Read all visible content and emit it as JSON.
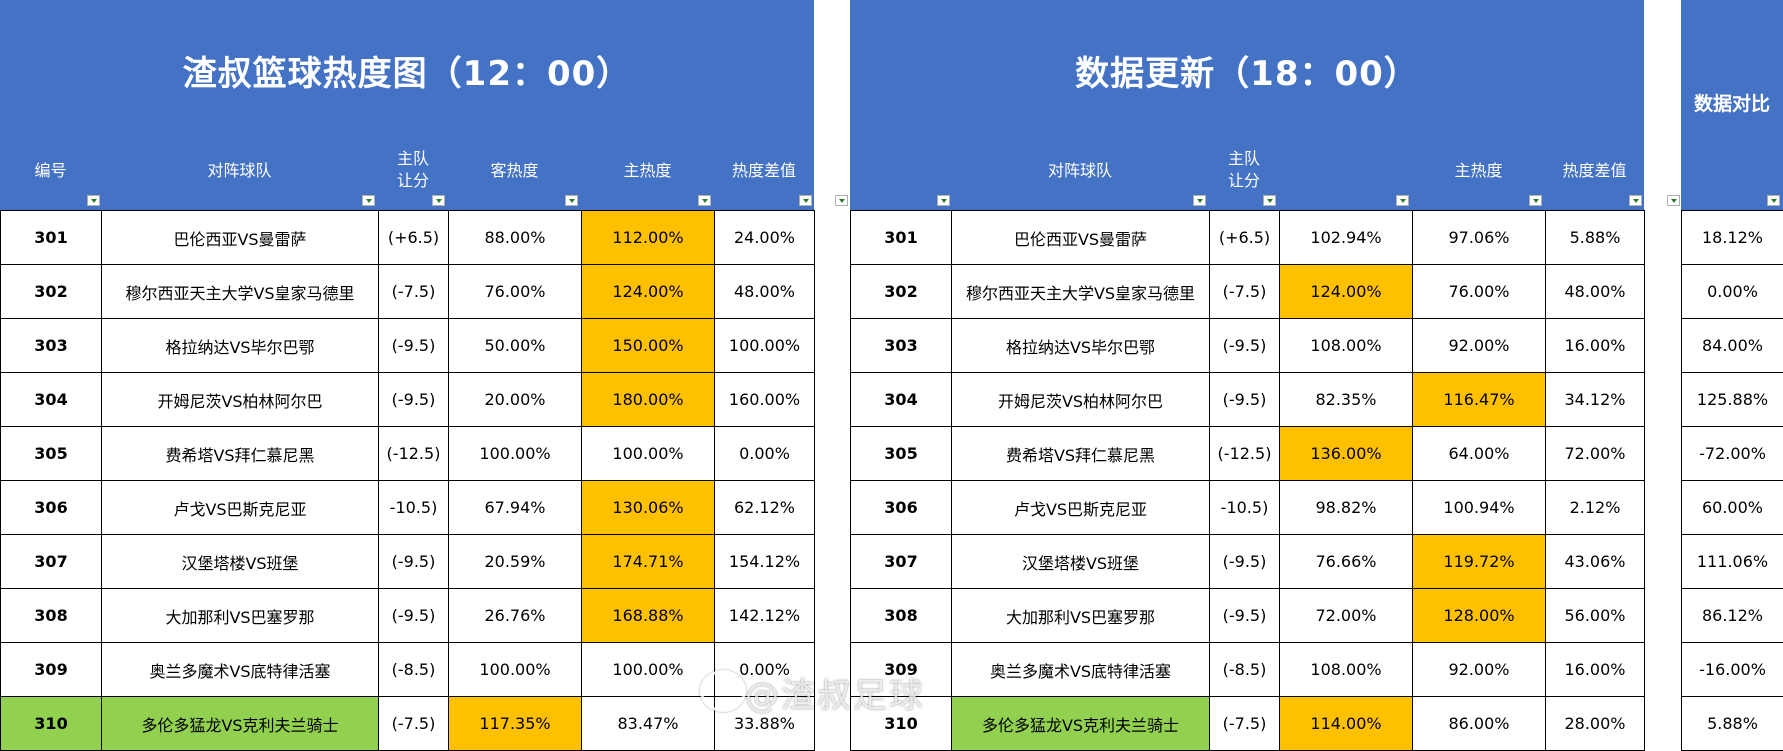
{
  "left": {
    "title": "渣叔篮球热度图（12：00）",
    "headers": [
      "编号",
      "对阵球队",
      "主队\n让分",
      "客热度",
      "主热度",
      "热度差值"
    ],
    "rows": [
      {
        "id": "301",
        "teams": "巴伦西亚VS曼雷萨",
        "spread": "(+6.5)",
        "away": "88.00%",
        "home": "112.00%",
        "diff": "24.00%"
      },
      {
        "id": "302",
        "teams": "穆尔西亚天主大学VS皇家马德里",
        "spread": "(-7.5)",
        "away": "76.00%",
        "home": "124.00%",
        "diff": "48.00%"
      },
      {
        "id": "303",
        "teams": "格拉纳达VS毕尔巴鄂",
        "spread": "(-9.5)",
        "away": "50.00%",
        "home": "150.00%",
        "diff": "100.00%"
      },
      {
        "id": "304",
        "teams": "开姆尼茨VS柏林阿尔巴",
        "spread": "(-9.5)",
        "away": "20.00%",
        "home": "180.00%",
        "diff": "160.00%"
      },
      {
        "id": "305",
        "teams": "费希塔VS拜仁慕尼黑",
        "spread": "(-12.5)",
        "away": "100.00%",
        "home": "100.00%",
        "diff": "0.00%"
      },
      {
        "id": "306",
        "teams": "卢戈VS巴斯克尼亚",
        "spread": "-10.5)",
        "away": "67.94%",
        "home": "130.06%",
        "diff": "62.12%"
      },
      {
        "id": "307",
        "teams": "汉堡塔楼VS班堡",
        "spread": "(-9.5)",
        "away": "20.59%",
        "home": "174.71%",
        "diff": "154.12%"
      },
      {
        "id": "308",
        "teams": "大加那利VS巴塞罗那",
        "spread": "(-9.5)",
        "away": "26.76%",
        "home": "168.88%",
        "diff": "142.12%"
      },
      {
        "id": "309",
        "teams": "奥兰多魔术VS底特律活塞",
        "spread": "(-8.5)",
        "away": "100.00%",
        "home": "100.00%",
        "diff": "0.00%"
      },
      {
        "id": "310",
        "teams": "多伦多猛龙VS克利夫兰骑士",
        "spread": "(-7.5)",
        "away": "117.35%",
        "home": "83.47%",
        "diff": "33.88%"
      }
    ]
  },
  "right": {
    "title": "数据更新（18：00）",
    "headers": [
      "对阵球队",
      "主队\n让分",
      "主热度",
      "热度差值"
    ],
    "rows": [
      {
        "id": "301",
        "teams": "巴伦西亚VS曼雷萨",
        "spread": "(+6.5)",
        "away": "102.94%",
        "home": "97.06%",
        "diff": "5.88%"
      },
      {
        "id": "302",
        "teams": "穆尔西亚天主大学VS皇家马德里",
        "spread": "(-7.5)",
        "away": "124.00%",
        "home": "76.00%",
        "diff": "48.00%"
      },
      {
        "id": "303",
        "teams": "格拉纳达VS毕尔巴鄂",
        "spread": "(-9.5)",
        "away": "108.00%",
        "home": "92.00%",
        "diff": "16.00%"
      },
      {
        "id": "304",
        "teams": "开姆尼茨VS柏林阿尔巴",
        "spread": "(-9.5)",
        "away": "82.35%",
        "home": "116.47%",
        "diff": "34.12%"
      },
      {
        "id": "305",
        "teams": "费希塔VS拜仁慕尼黑",
        "spread": "(-12.5)",
        "away": "136.00%",
        "home": "64.00%",
        "diff": "72.00%"
      },
      {
        "id": "306",
        "teams": "卢戈VS巴斯克尼亚",
        "spread": "-10.5)",
        "away": "98.82%",
        "home": "100.94%",
        "diff": "2.12%"
      },
      {
        "id": "307",
        "teams": "汉堡塔楼VS班堡",
        "spread": "(-9.5)",
        "away": "76.66%",
        "home": "119.72%",
        "diff": "43.06%"
      },
      {
        "id": "308",
        "teams": "大加那利VS巴塞罗那",
        "spread": "(-9.5)",
        "away": "72.00%",
        "home": "128.00%",
        "diff": "56.00%"
      },
      {
        "id": "309",
        "teams": "奥兰多魔术VS底特律活塞",
        "spread": "(-8.5)",
        "away": "108.00%",
        "home": "92.00%",
        "diff": "16.00%"
      },
      {
        "id": "310",
        "teams": "多伦多猛龙VS克利夫兰骑士",
        "spread": "(-7.5)",
        "away": "114.00%",
        "home": "86.00%",
        "diff": "28.00%"
      }
    ]
  },
  "compare": {
    "title": "数据对比",
    "values": [
      "18.12%",
      "0.00%",
      "84.00%",
      "125.88%",
      "-72.00%",
      "60.00%",
      "111.06%",
      "86.12%",
      "-16.00%",
      "5.88%"
    ]
  },
  "highlights": {
    "left": [
      [
        "home"
      ],
      [
        "home"
      ],
      [
        "home"
      ],
      [
        "home"
      ],
      [],
      [
        "home"
      ],
      [
        "home"
      ],
      [
        "home"
      ],
      [],
      [
        "id_g",
        "teams_g",
        "away"
      ]
    ],
    "right": [
      [],
      [
        "away"
      ],
      [],
      [
        "home"
      ],
      [
        "away"
      ],
      [],
      [
        "home"
      ],
      [
        "home"
      ],
      [],
      [
        "teams_g",
        "away"
      ]
    ]
  },
  "colors": {
    "header_blue": "#4472C4",
    "highlight_orange": "#FFC000",
    "highlight_green": "#92D050"
  },
  "watermark": {
    "text": "@渣叔足球",
    "icon": "weibo-icon"
  }
}
